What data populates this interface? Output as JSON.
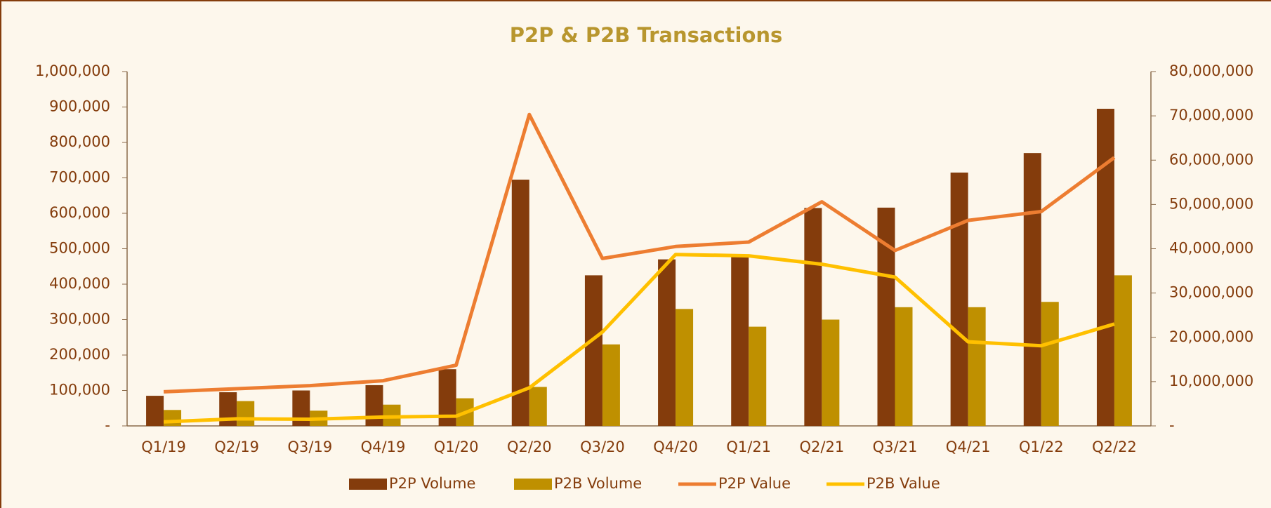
{
  "chart_data": {
    "type": "bar-line",
    "title": "P2P & P2B Transactions",
    "categories": [
      "Q1/19",
      "Q2/19",
      "Q3/19",
      "Q4/19",
      "Q1/20",
      "Q2/20",
      "Q3/20",
      "Q4/20",
      "Q1/21",
      "Q2/21",
      "Q3/21",
      "Q4/21",
      "Q1/22",
      "Q2/22"
    ],
    "series": [
      {
        "name": "P2P Volume",
        "type": "bar",
        "color": "#843c0c",
        "values": [
          85000,
          95000,
          100000,
          115000,
          160000,
          695000,
          425000,
          470000,
          480000,
          615000,
          616000,
          715000,
          770000,
          895000
        ]
      },
      {
        "name": "P2B Volume",
        "type": "bar",
        "color": "#bf9000",
        "values": [
          45000,
          70000,
          43000,
          60000,
          78000,
          110000,
          230000,
          330000,
          280000,
          300000,
          335000,
          335000,
          350000,
          425000
        ]
      },
      {
        "name": "P2P Value",
        "type": "line",
        "axis": "y2",
        "color": "#ed7d31",
        "values": [
          7700000,
          8400000,
          9100000,
          10200000,
          13700000,
          70300000,
          37800000,
          40500000,
          41500000,
          50600000,
          39600000,
          46400000,
          48400000,
          60600000
        ]
      },
      {
        "name": "P2B Value",
        "type": "line",
        "axis": "y2",
        "color": "#ffc000",
        "values": [
          900000,
          1600000,
          1500000,
          2000000,
          2200000,
          8600000,
          21200000,
          38700000,
          38400000,
          36500000,
          33600000,
          19000000,
          18100000,
          23000000
        ]
      }
    ],
    "ylim": [
      0,
      1000000
    ],
    "yticks": [
      {
        "value": 0,
        "label": "-"
      },
      {
        "value": 100000,
        "label": "100,000"
      },
      {
        "value": 200000,
        "label": "200,000"
      },
      {
        "value": 300000,
        "label": "300,000"
      },
      {
        "value": 400000,
        "label": "400,000"
      },
      {
        "value": 500000,
        "label": "500,000"
      },
      {
        "value": 600000,
        "label": "600,000"
      },
      {
        "value": 700000,
        "label": "700,000"
      },
      {
        "value": 800000,
        "label": "800,000"
      },
      {
        "value": 900000,
        "label": "900,000"
      },
      {
        "value": 1000000,
        "label": "1,000,000"
      }
    ],
    "y2lim": [
      0,
      80000000
    ],
    "y2ticks": [
      {
        "value": 0,
        "label": "-"
      },
      {
        "value": 10000000,
        "label": "10,000,000"
      },
      {
        "value": 20000000,
        "label": "20,000,000"
      },
      {
        "value": 30000000,
        "label": "30,000,000"
      },
      {
        "value": 40000000,
        "label": "40,000,000"
      },
      {
        "value": 50000000,
        "label": "50,000,000"
      },
      {
        "value": 60000000,
        "label": "60,000,000"
      },
      {
        "value": 70000000,
        "label": "70,000,000"
      },
      {
        "value": 80000000,
        "label": "80,000,000"
      }
    ],
    "legend": "bottom"
  }
}
